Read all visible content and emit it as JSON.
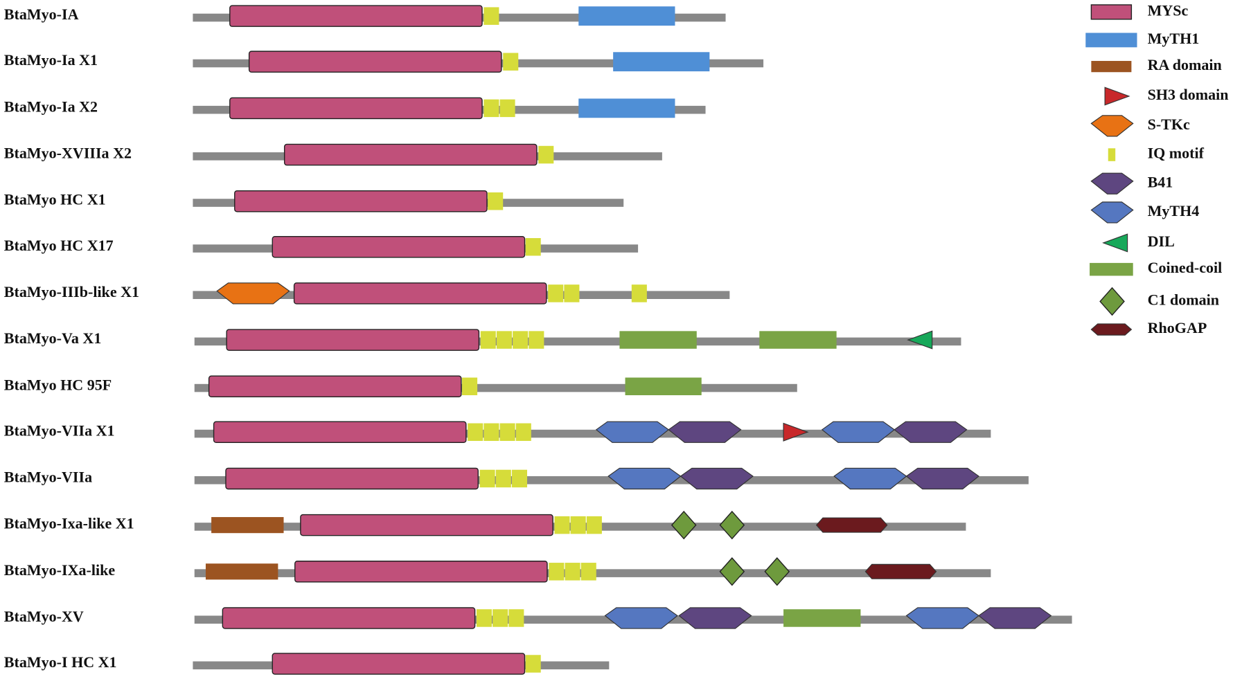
{
  "rows": [
    "BtaMyo-IA",
    "BtaMyo-Ia X1",
    "BtaMyo-Ia X2",
    "BtaMyo-XVIIIa X2",
    "BtaMyo HC X1",
    "BtaMyo HC X17",
    "BtaMyo-IIIb-like X1",
    "BtaMyo-Va X1",
    "BtaMyo HC 95F",
    "BtaMyo-VIIa X1",
    "BtaMyo-VIIa",
    "BtaMyo-Ixa-like X1",
    "BtaMyo-IXa-like",
    "BtaMyo-XV",
    "BtaMyo-I HC X1"
  ],
  "legend": [
    "MYSc",
    "MyTH1",
    "RA domain",
    "SH3 domain",
    "S-TKc",
    "IQ motif",
    "B41",
    "MyTH4",
    "DIL",
    "Coined-coil",
    "C1 domain",
    "RhoGAP"
  ]
}
